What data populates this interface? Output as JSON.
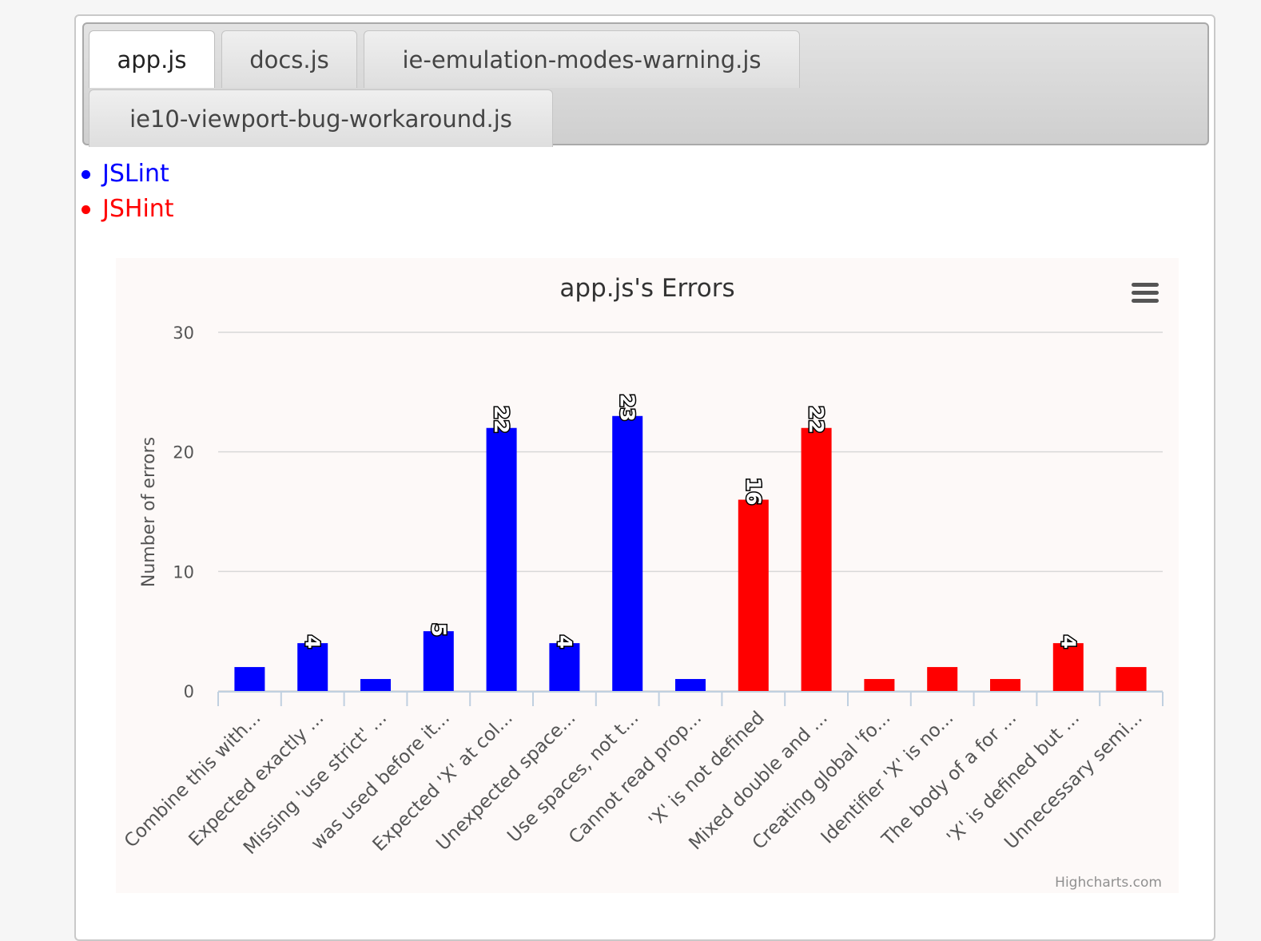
{
  "tabs": [
    {
      "label": "app.js",
      "active": true
    },
    {
      "label": "docs.js",
      "active": false
    },
    {
      "label": "ie-emulation-modes-warning.js",
      "active": false
    },
    {
      "label": "ie10-viewport-bug-workaround.js",
      "active": false
    }
  ],
  "legend": [
    {
      "label": "JSLint",
      "color": "#0000ff"
    },
    {
      "label": "JSHint",
      "color": "#ff0000"
    }
  ],
  "chart_data": {
    "type": "bar",
    "title": "app.js's Errors",
    "ylabel": "Number of errors",
    "xlabel": "",
    "ylim": [
      0,
      30
    ],
    "yticks": [
      0,
      10,
      20,
      30
    ],
    "grid": true,
    "credits": "Highcharts.com",
    "menu_icon": "hamburger-menu-icon",
    "background": "#fdf9f8",
    "categories": [
      "Combine this with...",
      "Expected exactly ...",
      "Missing 'use strict' ...",
      "was used before it...",
      "Expected 'X' at col...",
      "Unexpected space...",
      "Use spaces, not t...",
      "Cannot read prop...",
      "'X' is not defined",
      "Mixed double and ...",
      "Creating global 'fo...",
      "Identifier 'X' is no...",
      "The body of a for ...",
      "'X' is defined but ...",
      "Unnecessary semi..."
    ],
    "values": [
      2,
      4,
      1,
      5,
      22,
      4,
      23,
      1,
      16,
      22,
      1,
      2,
      1,
      4,
      2
    ],
    "show_labels": [
      false,
      true,
      false,
      true,
      true,
      true,
      true,
      false,
      true,
      true,
      false,
      false,
      false,
      true,
      false
    ],
    "colors": [
      "#0000ff",
      "#0000ff",
      "#0000ff",
      "#0000ff",
      "#0000ff",
      "#0000ff",
      "#0000ff",
      "#0000ff",
      "#ff0000",
      "#ff0000",
      "#ff0000",
      "#ff0000",
      "#ff0000",
      "#ff0000",
      "#ff0000"
    ]
  }
}
